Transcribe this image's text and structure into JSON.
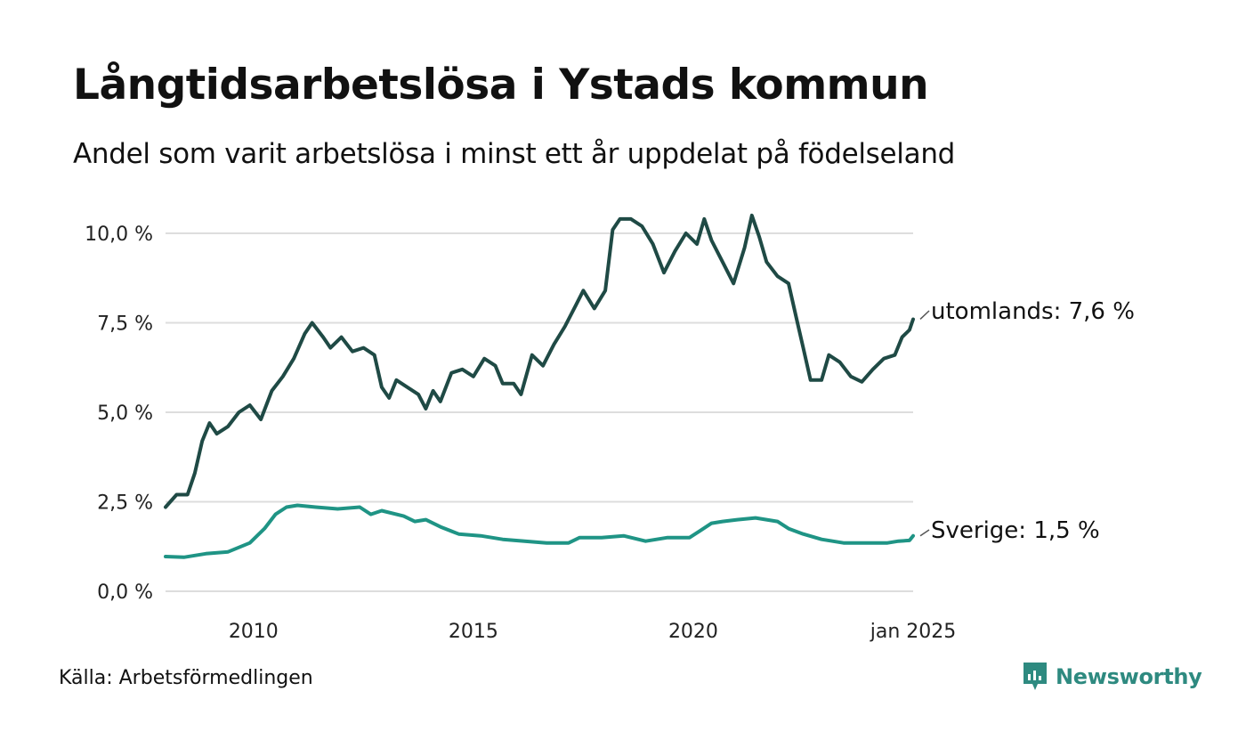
{
  "header": {
    "title": "Långtidsarbetslösa i Ystads kommun",
    "subtitle": "Andel som varit arbetslösa i minst ett år uppdelat på födelseland"
  },
  "footer": {
    "source": "Källa: Arbetsförmedlingen",
    "brand": "Newsworthy",
    "brand_icon": "newsworthy-logo-icon"
  },
  "colors": {
    "utomlands": "#1f4a45",
    "sverige": "#1f9485",
    "grid": "#dddddd",
    "brand": "#2e8a80"
  },
  "chart_data": {
    "type": "line",
    "xlabel": "",
    "ylabel": "",
    "x_range": [
      "2008-01",
      "2025-01"
    ],
    "ylim": [
      0,
      10
    ],
    "y_ticks": [
      0,
      2.5,
      5,
      7.5,
      10
    ],
    "y_tick_labels": [
      "0,0 %",
      "2,5 %",
      "5,0 %",
      "7,5 %",
      "10,0 %"
    ],
    "x_ticks": [
      "2010-01",
      "2015-01",
      "2020-01",
      "2025-01"
    ],
    "x_tick_labels": [
      "2010",
      "2015",
      "2020",
      "jan 2025"
    ],
    "grid": "horizontal",
    "legend": "none",
    "series": [
      {
        "key": "utomlands",
        "end_label": "utomlands: 7,6 %",
        "points": [
          [
            "2008-01",
            2.35
          ],
          [
            "2008-04",
            2.7
          ],
          [
            "2008-07",
            2.7
          ],
          [
            "2008-09",
            3.3
          ],
          [
            "2008-11",
            4.2
          ],
          [
            "2009-01",
            4.7
          ],
          [
            "2009-03",
            4.4
          ],
          [
            "2009-06",
            4.6
          ],
          [
            "2009-09",
            5.0
          ],
          [
            "2009-12",
            5.2
          ],
          [
            "2010-03",
            4.8
          ],
          [
            "2010-06",
            5.6
          ],
          [
            "2010-09",
            6.0
          ],
          [
            "2010-12",
            6.5
          ],
          [
            "2011-03",
            7.2
          ],
          [
            "2011-05",
            7.5
          ],
          [
            "2011-08",
            7.1
          ],
          [
            "2011-10",
            6.8
          ],
          [
            "2012-01",
            7.1
          ],
          [
            "2012-04",
            6.7
          ],
          [
            "2012-07",
            6.8
          ],
          [
            "2012-10",
            6.6
          ],
          [
            "2012-12",
            5.7
          ],
          [
            "2013-02",
            5.4
          ],
          [
            "2013-04",
            5.9
          ],
          [
            "2013-07",
            5.7
          ],
          [
            "2013-10",
            5.5
          ],
          [
            "2013-12",
            5.1
          ],
          [
            "2014-02",
            5.6
          ],
          [
            "2014-04",
            5.3
          ],
          [
            "2014-07",
            6.1
          ],
          [
            "2014-10",
            6.2
          ],
          [
            "2015-01",
            6.0
          ],
          [
            "2015-04",
            6.5
          ],
          [
            "2015-07",
            6.3
          ],
          [
            "2015-09",
            5.8
          ],
          [
            "2015-12",
            5.8
          ],
          [
            "2016-02",
            5.5
          ],
          [
            "2016-05",
            6.6
          ],
          [
            "2016-08",
            6.3
          ],
          [
            "2016-11",
            6.9
          ],
          [
            "2017-02",
            7.4
          ],
          [
            "2017-05",
            8.0
          ],
          [
            "2017-07",
            8.4
          ],
          [
            "2017-10",
            7.9
          ],
          [
            "2018-01",
            8.4
          ],
          [
            "2018-03",
            10.1
          ],
          [
            "2018-05",
            10.4
          ],
          [
            "2018-08",
            10.4
          ],
          [
            "2018-11",
            10.2
          ],
          [
            "2019-02",
            9.7
          ],
          [
            "2019-05",
            8.9
          ],
          [
            "2019-08",
            9.5
          ],
          [
            "2019-11",
            10.0
          ],
          [
            "2020-02",
            9.7
          ],
          [
            "2020-04",
            10.4
          ],
          [
            "2020-06",
            9.8
          ],
          [
            "2020-09",
            9.2
          ],
          [
            "2020-12",
            8.6
          ],
          [
            "2021-03",
            9.6
          ],
          [
            "2021-05",
            10.5
          ],
          [
            "2021-07",
            9.9
          ],
          [
            "2021-09",
            9.2
          ],
          [
            "2021-12",
            8.8
          ],
          [
            "2022-03",
            8.6
          ],
          [
            "2022-05",
            7.7
          ],
          [
            "2022-07",
            6.8
          ],
          [
            "2022-09",
            5.9
          ],
          [
            "2022-12",
            5.9
          ],
          [
            "2023-02",
            6.6
          ],
          [
            "2023-05",
            6.4
          ],
          [
            "2023-08",
            6.0
          ],
          [
            "2023-11",
            5.85
          ],
          [
            "2024-02",
            6.2
          ],
          [
            "2024-05",
            6.5
          ],
          [
            "2024-08",
            6.6
          ],
          [
            "2024-10",
            7.1
          ],
          [
            "2024-12",
            7.3
          ],
          [
            "2025-01",
            7.6
          ]
        ]
      },
      {
        "key": "sverige",
        "end_label": "Sverige: 1,5 %",
        "points": [
          [
            "2008-01",
            0.97
          ],
          [
            "2008-06",
            0.95
          ],
          [
            "2008-12",
            1.05
          ],
          [
            "2009-06",
            1.1
          ],
          [
            "2009-12",
            1.35
          ],
          [
            "2010-04",
            1.75
          ],
          [
            "2010-07",
            2.15
          ],
          [
            "2010-10",
            2.35
          ],
          [
            "2011-01",
            2.4
          ],
          [
            "2011-06",
            2.35
          ],
          [
            "2011-12",
            2.3
          ],
          [
            "2012-06",
            2.35
          ],
          [
            "2012-09",
            2.15
          ],
          [
            "2012-12",
            2.25
          ],
          [
            "2013-06",
            2.1
          ],
          [
            "2013-09",
            1.95
          ],
          [
            "2013-12",
            2.0
          ],
          [
            "2014-04",
            1.8
          ],
          [
            "2014-09",
            1.6
          ],
          [
            "2015-03",
            1.55
          ],
          [
            "2015-09",
            1.45
          ],
          [
            "2016-03",
            1.4
          ],
          [
            "2016-09",
            1.35
          ],
          [
            "2017-03",
            1.35
          ],
          [
            "2017-06",
            1.5
          ],
          [
            "2017-12",
            1.5
          ],
          [
            "2018-06",
            1.55
          ],
          [
            "2018-12",
            1.4
          ],
          [
            "2019-06",
            1.5
          ],
          [
            "2019-12",
            1.5
          ],
          [
            "2020-03",
            1.7
          ],
          [
            "2020-06",
            1.9
          ],
          [
            "2020-09",
            1.95
          ],
          [
            "2021-01",
            2.0
          ],
          [
            "2021-06",
            2.05
          ],
          [
            "2021-12",
            1.95
          ],
          [
            "2022-03",
            1.75
          ],
          [
            "2022-07",
            1.6
          ],
          [
            "2022-12",
            1.45
          ],
          [
            "2023-06",
            1.35
          ],
          [
            "2023-12",
            1.35
          ],
          [
            "2024-06",
            1.35
          ],
          [
            "2024-09",
            1.4
          ],
          [
            "2024-12",
            1.42
          ],
          [
            "2025-01",
            1.55
          ]
        ]
      }
    ]
  }
}
